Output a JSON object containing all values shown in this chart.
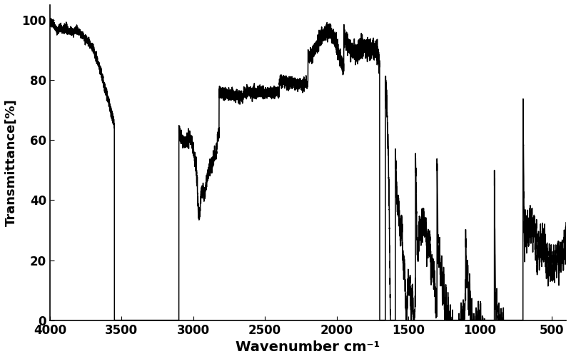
{
  "title": "",
  "xlabel": "Wavenumber cm⁻¹",
  "ylabel": "Transmittance[%]",
  "xlim": [
    4000,
    400
  ],
  "ylim": [
    0,
    105
  ],
  "yticks": [
    0,
    20,
    40,
    60,
    80,
    100
  ],
  "xticks": [
    4000,
    3500,
    3000,
    2500,
    2000,
    1500,
    1000,
    500
  ],
  "line_color": "#000000",
  "line_width": 1.1,
  "bg_color": "#ffffff",
  "xlabel_fontsize": 14,
  "ylabel_fontsize": 13,
  "tick_fontsize": 12
}
